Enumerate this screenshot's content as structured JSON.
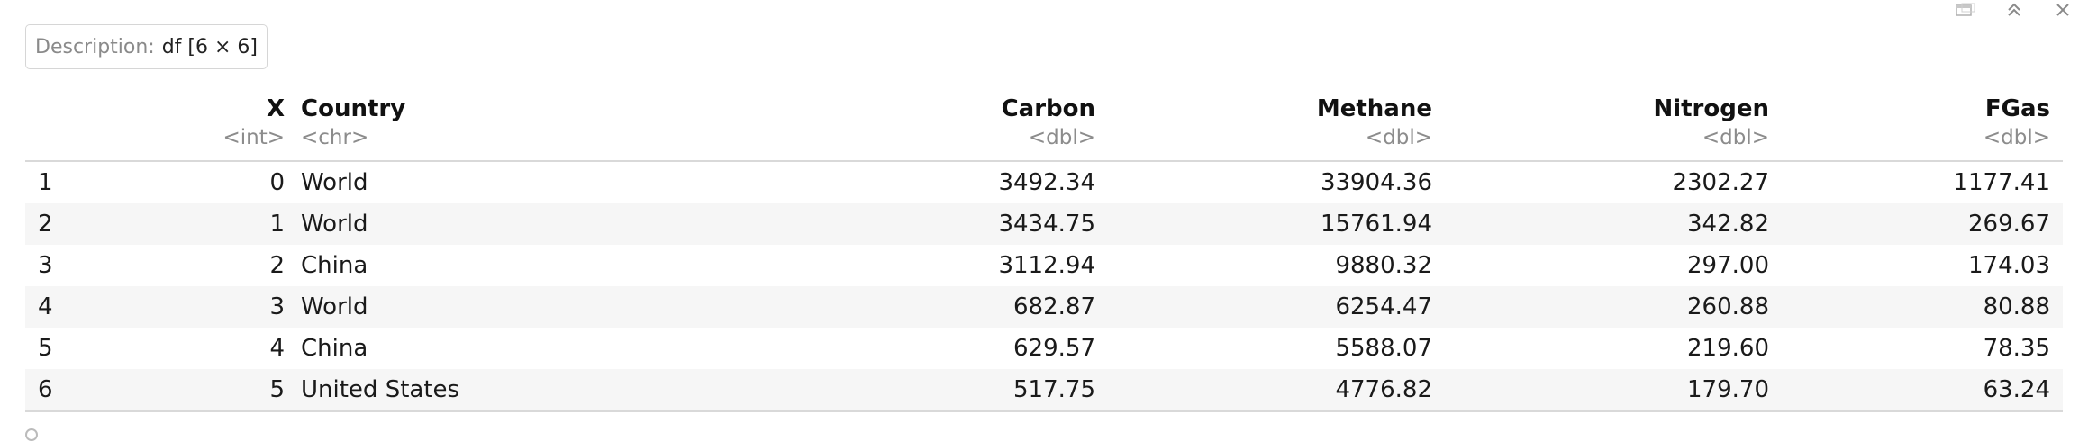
{
  "toolbar": {
    "icons": [
      "show-in-new-window-icon",
      "collapse-output-icon",
      "clear-output-icon"
    ]
  },
  "description": {
    "label": "Description:",
    "value": "df [6 × 6]"
  },
  "table": {
    "columns": [
      {
        "name": "",
        "type": ""
      },
      {
        "name": "X",
        "type": "<int>"
      },
      {
        "name": "Country",
        "type": "<chr>"
      },
      {
        "name": "Carbon",
        "type": "<dbl>"
      },
      {
        "name": "Methane",
        "type": "<dbl>"
      },
      {
        "name": "Nitrogen",
        "type": "<dbl>"
      },
      {
        "name": "FGas",
        "type": "<dbl>"
      }
    ],
    "rows": [
      {
        "row": "1",
        "x": "0",
        "country": "World",
        "carbon": "3492.34",
        "methane": "33904.36",
        "nitrogen": "2302.27",
        "fgas": "1177.41"
      },
      {
        "row": "2",
        "x": "1",
        "country": "World",
        "carbon": "3434.75",
        "methane": "15761.94",
        "nitrogen": "342.82",
        "fgas": "269.67"
      },
      {
        "row": "3",
        "x": "2",
        "country": "China",
        "carbon": "3112.94",
        "methane": "9880.32",
        "nitrogen": "297.00",
        "fgas": "174.03"
      },
      {
        "row": "4",
        "x": "3",
        "country": "World",
        "carbon": "682.87",
        "methane": "6254.47",
        "nitrogen": "260.88",
        "fgas": "80.88"
      },
      {
        "row": "5",
        "x": "4",
        "country": "China",
        "carbon": "629.57",
        "methane": "5588.07",
        "nitrogen": "219.60",
        "fgas": "78.35"
      },
      {
        "row": "6",
        "x": "5",
        "country": "United States",
        "carbon": "517.75",
        "methane": "4776.82",
        "nitrogen": "179.70",
        "fgas": "63.24"
      }
    ]
  }
}
